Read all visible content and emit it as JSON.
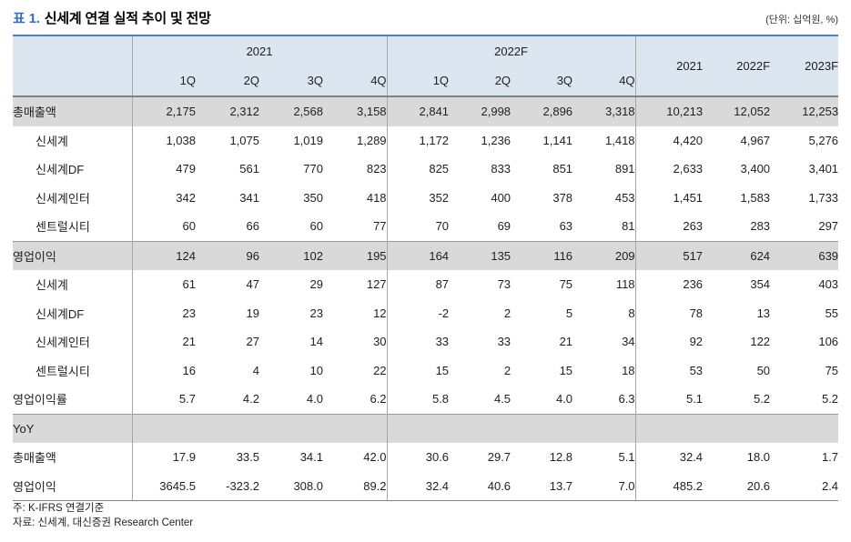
{
  "title": {
    "prefix": "표 1.",
    "text": "신세계 연결 실적 추이 및 전망"
  },
  "unit_note": "(단위: 십억원, %)",
  "colors": {
    "accent_blue_border": "#4f81bd",
    "title_blue": "#3a6db5",
    "header_bg": "#dce6f1",
    "band_bg": "#d9d9d9",
    "dark_line": "#7f7f7f",
    "light_line": "#a6a6a6"
  },
  "table": {
    "col_groups": [
      {
        "label": "2021",
        "quarters": [
          "1Q",
          "2Q",
          "3Q",
          "4Q"
        ]
      },
      {
        "label": "2022F",
        "quarters": [
          "1Q",
          "2Q",
          "3Q",
          "4Q"
        ]
      }
    ],
    "annual_headers": [
      "2021",
      "2022F",
      "2023F"
    ],
    "rows": [
      {
        "label": "총매출액",
        "type": "section",
        "values": [
          "2,175",
          "2,312",
          "2,568",
          "3,158",
          "2,841",
          "2,998",
          "2,896",
          "3,318",
          "10,213",
          "12,052",
          "12,253"
        ]
      },
      {
        "label": "신세계",
        "type": "sub",
        "values": [
          "1,038",
          "1,075",
          "1,019",
          "1,289",
          "1,172",
          "1,236",
          "1,141",
          "1,418",
          "4,420",
          "4,967",
          "5,276"
        ]
      },
      {
        "label": "신세계DF",
        "type": "sub",
        "values": [
          "479",
          "561",
          "770",
          "823",
          "825",
          "833",
          "851",
          "891",
          "2,633",
          "3,400",
          "3,401"
        ]
      },
      {
        "label": "신세계인터",
        "type": "sub",
        "values": [
          "342",
          "341",
          "350",
          "418",
          "352",
          "400",
          "378",
          "453",
          "1,451",
          "1,583",
          "1,733"
        ]
      },
      {
        "label": "센트럴시티",
        "type": "sub",
        "values": [
          "60",
          "66",
          "60",
          "77",
          "70",
          "69",
          "63",
          "81",
          "263",
          "283",
          "297"
        ]
      },
      {
        "label": "영업이익",
        "type": "section",
        "values": [
          "124",
          "96",
          "102",
          "195",
          "164",
          "135",
          "116",
          "209",
          "517",
          "624",
          "639"
        ]
      },
      {
        "label": "신세계",
        "type": "sub",
        "values": [
          "61",
          "47",
          "29",
          "127",
          "87",
          "73",
          "75",
          "118",
          "236",
          "354",
          "403"
        ]
      },
      {
        "label": "신세계DF",
        "type": "sub",
        "values": [
          "23",
          "19",
          "23",
          "12",
          "-2",
          "2",
          "5",
          "8",
          "78",
          "13",
          "55"
        ]
      },
      {
        "label": "신세계인터",
        "type": "sub",
        "values": [
          "21",
          "27",
          "14",
          "30",
          "33",
          "33",
          "21",
          "34",
          "92",
          "122",
          "106"
        ]
      },
      {
        "label": "센트럴시티",
        "type": "sub",
        "values": [
          "16",
          "4",
          "10",
          "22",
          "15",
          "2",
          "15",
          "18",
          "53",
          "50",
          "75"
        ]
      },
      {
        "label": "영업이익률",
        "type": "plain",
        "values": [
          "5.7",
          "4.2",
          "4.0",
          "6.2",
          "5.8",
          "4.5",
          "4.0",
          "6.3",
          "5.1",
          "5.2",
          "5.2"
        ]
      },
      {
        "label": "YoY",
        "type": "section-empty",
        "values": [
          "",
          "",
          "",
          "",
          "",
          "",
          "",
          "",
          "",
          "",
          ""
        ]
      },
      {
        "label": "총매출액",
        "type": "plain",
        "values": [
          "17.9",
          "33.5",
          "34.1",
          "42.0",
          "30.6",
          "29.7",
          "12.8",
          "5.1",
          "32.4",
          "18.0",
          "1.7"
        ]
      },
      {
        "label": "영업이익",
        "type": "plain",
        "values": [
          "3645.5",
          "-323.2",
          "308.0",
          "89.2",
          "32.4",
          "40.6",
          "13.7",
          "7.0",
          "485.2",
          "20.6",
          "2.4"
        ]
      }
    ]
  },
  "footnotes": [
    "주: K-IFRS 연결기준",
    "자료: 신세계, 대신증권 Research Center"
  ]
}
